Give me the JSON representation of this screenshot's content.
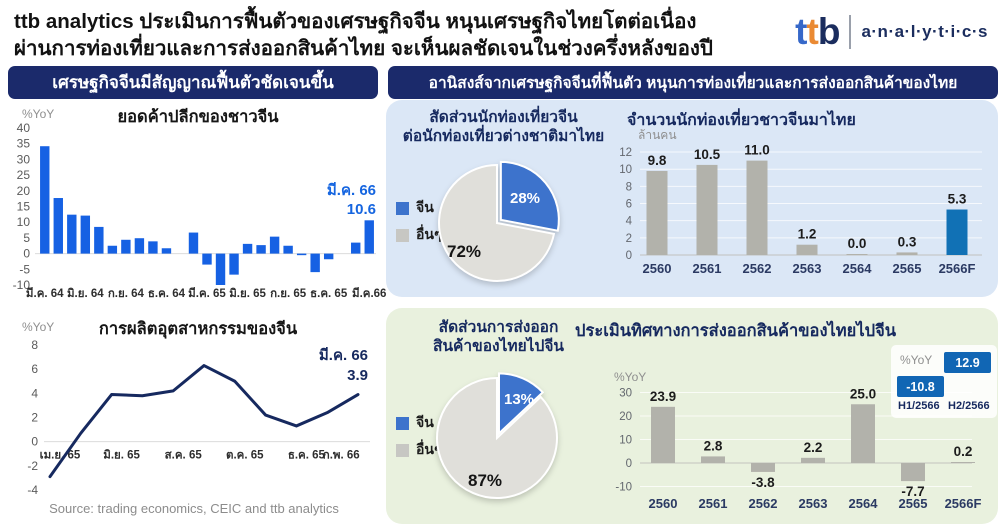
{
  "header": {
    "title_line1": "ttb analytics ประเมินการฟื้นตัวของเศรษฐกิจจีน  หนุนเศรษฐกิจไทยโตต่อเนื่อง",
    "title_line2": "ผ่านการท่องเที่ยวและการส่งออกสินค้าไทย จะเห็นผลชัดเจนในช่วงครึ่งหลังของปี",
    "logo": {
      "brand": "ttb",
      "suffix": "a·n·a·l·y·t·i·c·s"
    }
  },
  "left_panel": {
    "header": "เศรษฐกิจจีนมีสัญญาณฟื้นตัวชัดเจนขึ้น",
    "source": "Source: trading economics, CEIC and ttb analytics"
  },
  "right_panel": {
    "header": "อานิสงส์จากเศรษฐกิจจีนที่ฟื้นตัว  หนุนการท่องเที่ยวและการส่งออกสินค้าของไทย"
  },
  "colors": {
    "navy_header": "#1b2a6b",
    "retail_bar_blue": "#1661e3",
    "line_navy": "#16295f",
    "pie_blue": "#3d73cc",
    "pie_gray": "#e0dfda",
    "bar_gray": "#b2b2ab",
    "tourist_forecast_blue": "#1171b5",
    "badge_blue": "#1166b4",
    "panel_blue_bg": "#dbe7f6",
    "panel_green_bg": "#e9f1de"
  },
  "chart_data": [
    {
      "id": "china_retail_sales",
      "type": "bar",
      "title": "ยอดค้าปลีกของชาวจีน",
      "ylabel": "%YoY",
      "yticks": [
        40,
        35,
        30,
        25,
        20,
        15,
        10,
        5,
        0,
        -5,
        -10
      ],
      "ylim": [
        -10,
        40
      ],
      "values": [
        34.2,
        17.7,
        12.4,
        12.1,
        8.5,
        2.5,
        4.4,
        4.9,
        3.9,
        1.7,
        null,
        6.7,
        -3.5,
        -11.1,
        -6.7,
        3.1,
        2.7,
        5.4,
        2.5,
        -0.5,
        -5.9,
        -1.8,
        null,
        3.5,
        10.6
      ],
      "x_tick_labels": [
        "มี.ค. 64",
        "มิ.ย. 64",
        "ก.ย. 64",
        "ธ.ค. 64",
        "มี.ค. 65",
        "มิ.ย. 65",
        "ก.ย. 65",
        "ธ.ค. 65",
        "มี.ค.66"
      ],
      "x_tick_slots": [
        0,
        3,
        6,
        9,
        12,
        15,
        18,
        21,
        24
      ],
      "annotation": {
        "label": "มี.ค. 66",
        "value": "10.6"
      },
      "bar_color": "#1661e3",
      "grid": false
    },
    {
      "id": "china_industrial_production",
      "type": "line",
      "title": "การผลิตอุตสาหกรรมของจีน",
      "ylabel": "%YoY",
      "yticks": [
        8,
        6,
        4,
        2,
        0,
        -2,
        -4
      ],
      "ylim": [
        -4,
        8
      ],
      "values": [
        -2.9,
        0.7,
        3.9,
        3.8,
        4.2,
        6.3,
        5.0,
        2.2,
        1.3,
        2.4,
        3.9
      ],
      "x_tick_labels": [
        "เม.ย. 65",
        "มิ.ย. 65",
        "ส.ค. 65",
        "ต.ค. 65",
        "ธ.ค. 65",
        "ก.พ. 66"
      ],
      "x_tick_points": [
        0,
        2,
        4,
        6,
        8,
        9
      ],
      "annotation": {
        "label": "มี.ค. 66",
        "value": "3.9"
      },
      "line_color": "#16295f",
      "grid": false
    },
    {
      "id": "chinese_tourist_share_of_foreign_tourists",
      "type": "pie",
      "title_lines": [
        "สัดส่วนนักท่องเที่ยวจีน",
        "ต่อนักท่องเที่ยวต่างชาติมาไทย"
      ],
      "legend": [
        "จีน",
        "อื่นๆ"
      ],
      "slices": [
        {
          "name": "จีน",
          "label": "28%",
          "value": 28,
          "color": "#3d73cc"
        },
        {
          "name": "อื่นๆ",
          "label": "72%",
          "value": 72,
          "color": "#e0dfda"
        }
      ]
    },
    {
      "id": "chinese_tourists_to_thailand",
      "type": "bar",
      "title": "จำนวนนักท่องเที่ยวชาวจีนมาไทย",
      "ylabel": "ล้านคน",
      "yticks": [
        12,
        10,
        8,
        6,
        4,
        2,
        0
      ],
      "ylim": [
        0,
        12
      ],
      "categories": [
        "2560",
        "2561",
        "2562",
        "2563",
        "2564",
        "2565",
        "2566F"
      ],
      "values": [
        9.8,
        10.5,
        11.0,
        1.2,
        0.0,
        0.3,
        5.3
      ],
      "value_labels": [
        "9.8",
        "10.5",
        "11.0",
        "1.2",
        "0.0",
        "0.3",
        "5.3"
      ],
      "bar_colors": [
        "#b2b2ab",
        "#b2b2ab",
        "#b2b2ab",
        "#b2b2ab",
        "#b2b2ab",
        "#b2b2ab",
        "#1171b5"
      ],
      "grid": true
    },
    {
      "id": "thai_export_share_to_china",
      "type": "pie",
      "title_lines": [
        "สัดส่วนการส่งออก",
        "สินค้าของไทยไปจีน"
      ],
      "legend": [
        "จีน",
        "อื่นๆ"
      ],
      "slices": [
        {
          "name": "จีน",
          "label": "13%",
          "value": 13,
          "color": "#3d73cc"
        },
        {
          "name": "อื่นๆ",
          "label": "87%",
          "value": 87,
          "color": "#e0dfda"
        }
      ]
    },
    {
      "id": "thai_exports_to_china_outlook",
      "type": "bar",
      "title": "ประเมินทิศทางการส่งออกสินค้าของไทยไปจีน",
      "ylabel": "%YoY",
      "yticks": [
        30,
        20,
        10,
        0,
        -10
      ],
      "ylim": [
        -10,
        30
      ],
      "categories": [
        "2560",
        "2561",
        "2562",
        "2563",
        "2564",
        "2565",
        "2566F"
      ],
      "values": [
        23.9,
        2.8,
        -3.8,
        2.2,
        25.0,
        -7.7,
        0.2
      ],
      "value_labels": [
        "23.9",
        "2.8",
        "-3.8",
        "2.2",
        "25.0",
        "-7.7",
        "0.2"
      ],
      "bar_colors": [
        "#b2b2ab",
        "#b2b2ab",
        "#b2b2ab",
        "#b2b2ab",
        "#b2b2ab",
        "#b2b2ab",
        "#b2b2ab"
      ],
      "grid": true,
      "inset": {
        "unit": "%YoY",
        "items": [
          {
            "label": "H1/2566",
            "value": "-10.8"
          },
          {
            "label": "H2/2566",
            "value": "12.9"
          }
        ],
        "badge_color": "#1166b4"
      }
    }
  ]
}
